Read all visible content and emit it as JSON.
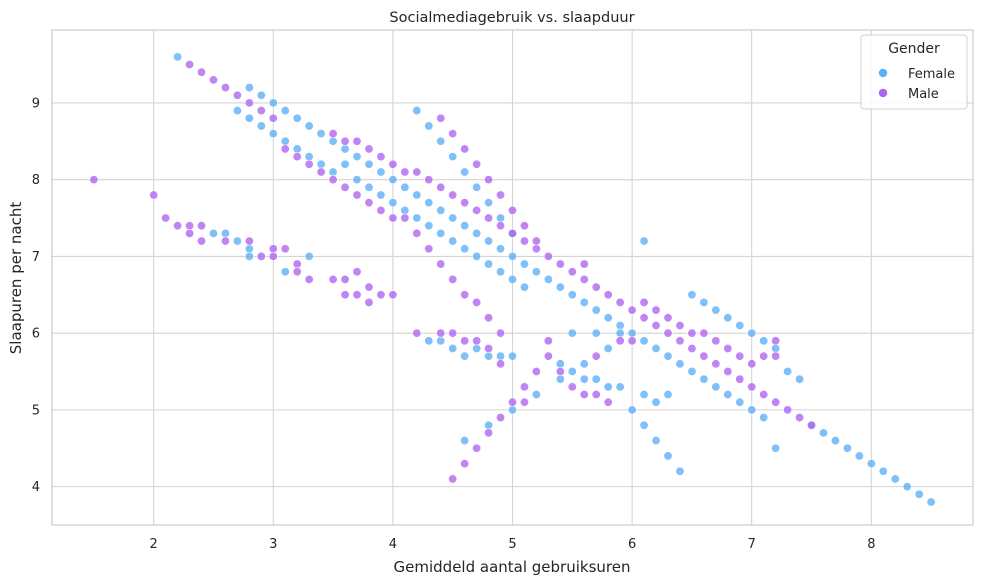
{
  "chart_data": {
    "type": "scatter",
    "title": "Socialmediagebruik vs. slaapduur",
    "xlabel": "Gemiddeld aantal gebruiksuren",
    "ylabel": "Slaapuren per nacht",
    "xlim": [
      1.15,
      8.85
    ],
    "ylim": [
      3.5,
      9.95
    ],
    "xticks": [
      2,
      3,
      4,
      5,
      6,
      7,
      8
    ],
    "yticks": [
      4,
      5,
      6,
      7,
      8,
      9
    ],
    "grid": true,
    "legend": {
      "title": "Gender",
      "placement": "top-right"
    },
    "series": [
      {
        "name": "Female",
        "color": "#5aaef5",
        "points": [
          [
            2.2,
            9.6
          ],
          [
            2.7,
            8.9
          ],
          [
            2.8,
            8.8
          ],
          [
            2.8,
            9.2
          ],
          [
            2.9,
            8.7
          ],
          [
            2.9,
            9.1
          ],
          [
            3.0,
            8.6
          ],
          [
            3.0,
            9.0
          ],
          [
            3.1,
            8.9
          ],
          [
            3.1,
            8.5
          ],
          [
            3.2,
            8.8
          ],
          [
            3.2,
            8.4
          ],
          [
            3.3,
            8.7
          ],
          [
            3.3,
            8.3
          ],
          [
            3.4,
            8.6
          ],
          [
            3.4,
            8.2
          ],
          [
            3.5,
            8.5
          ],
          [
            3.5,
            8.1
          ],
          [
            3.6,
            8.4
          ],
          [
            3.6,
            8.2
          ],
          [
            3.7,
            8.3
          ],
          [
            3.7,
            8.0
          ],
          [
            3.8,
            8.2
          ],
          [
            3.8,
            7.9
          ],
          [
            3.9,
            8.1
          ],
          [
            3.9,
            7.8
          ],
          [
            4.0,
            8.0
          ],
          [
            4.0,
            7.7
          ],
          [
            4.1,
            7.9
          ],
          [
            4.1,
            7.6
          ],
          [
            4.2,
            7.8
          ],
          [
            4.2,
            7.5
          ],
          [
            4.3,
            7.7
          ],
          [
            4.3,
            7.4
          ],
          [
            4.4,
            7.6
          ],
          [
            4.4,
            7.3
          ],
          [
            4.5,
            7.5
          ],
          [
            4.5,
            7.2
          ],
          [
            4.6,
            7.4
          ],
          [
            4.6,
            7.1
          ],
          [
            4.7,
            7.3
          ],
          [
            4.7,
            7.0
          ],
          [
            4.8,
            7.2
          ],
          [
            4.8,
            6.9
          ],
          [
            4.9,
            7.1
          ],
          [
            4.9,
            6.8
          ],
          [
            5.0,
            7.0
          ],
          [
            5.0,
            6.7
          ],
          [
            5.1,
            6.9
          ],
          [
            5.1,
            6.6
          ],
          [
            5.2,
            6.8
          ],
          [
            5.3,
            6.7
          ],
          [
            5.4,
            6.6
          ],
          [
            5.5,
            6.5
          ],
          [
            5.6,
            6.4
          ],
          [
            5.7,
            6.3
          ],
          [
            5.8,
            6.2
          ],
          [
            5.9,
            6.1
          ],
          [
            6.0,
            6.0
          ],
          [
            6.1,
            5.9
          ],
          [
            6.2,
            5.8
          ],
          [
            6.3,
            5.7
          ],
          [
            6.4,
            5.6
          ],
          [
            6.5,
            5.5
          ],
          [
            6.6,
            5.4
          ],
          [
            6.7,
            5.3
          ],
          [
            6.8,
            5.2
          ],
          [
            6.9,
            5.1
          ],
          [
            7.0,
            5.0
          ],
          [
            7.1,
            4.9
          ],
          [
            7.5,
            4.8
          ],
          [
            7.6,
            4.7
          ],
          [
            7.7,
            4.6
          ],
          [
            7.8,
            4.5
          ],
          [
            7.9,
            4.4
          ],
          [
            8.0,
            4.3
          ],
          [
            8.1,
            4.2
          ],
          [
            8.2,
            4.1
          ],
          [
            8.3,
            4.0
          ],
          [
            8.4,
            3.9
          ],
          [
            8.5,
            3.8
          ],
          [
            4.2,
            8.9
          ],
          [
            4.3,
            8.7
          ],
          [
            4.4,
            8.5
          ],
          [
            4.5,
            8.3
          ],
          [
            4.6,
            8.1
          ],
          [
            4.7,
            7.9
          ],
          [
            4.8,
            7.7
          ],
          [
            4.9,
            7.5
          ],
          [
            5.0,
            7.3
          ],
          [
            6.1,
            7.2
          ],
          [
            6.5,
            6.5
          ],
          [
            6.6,
            6.4
          ],
          [
            6.7,
            6.3
          ],
          [
            6.8,
            6.2
          ],
          [
            6.9,
            6.1
          ],
          [
            7.0,
            6.0
          ],
          [
            7.1,
            5.9
          ],
          [
            7.2,
            5.8
          ],
          [
            7.3,
            5.5
          ],
          [
            7.4,
            5.4
          ],
          [
            7.2,
            4.5
          ],
          [
            2.5,
            7.3
          ],
          [
            2.6,
            7.3
          ],
          [
            2.7,
            7.2
          ],
          [
            2.8,
            7.1
          ],
          [
            2.8,
            7.0
          ],
          [
            3.1,
            6.8
          ],
          [
            3.3,
            7.0
          ],
          [
            4.3,
            5.9
          ],
          [
            4.4,
            5.9
          ],
          [
            4.5,
            5.8
          ],
          [
            4.6,
            5.7
          ],
          [
            4.7,
            5.8
          ],
          [
            4.8,
            5.7
          ],
          [
            4.9,
            5.7
          ],
          [
            5.0,
            5.7
          ],
          [
            5.4,
            5.6
          ],
          [
            5.5,
            5.5
          ],
          [
            5.6,
            5.4
          ],
          [
            5.7,
            5.4
          ],
          [
            5.8,
            5.3
          ],
          [
            5.9,
            5.3
          ],
          [
            6.0,
            5.0
          ],
          [
            6.1,
            4.8
          ],
          [
            6.2,
            4.6
          ],
          [
            6.3,
            4.4
          ],
          [
            6.4,
            4.2
          ],
          [
            4.6,
            4.6
          ],
          [
            4.8,
            4.8
          ],
          [
            5.0,
            5.0
          ],
          [
            5.2,
            5.2
          ],
          [
            5.4,
            5.4
          ],
          [
            5.5,
            6.0
          ],
          [
            5.6,
            5.6
          ],
          [
            5.7,
            6.0
          ],
          [
            5.8,
            5.8
          ],
          [
            5.9,
            6.0
          ],
          [
            6.1,
            5.2
          ],
          [
            6.2,
            5.1
          ],
          [
            6.3,
            5.2
          ]
        ]
      },
      {
        "name": "Male",
        "color": "#b063f0",
        "points": [
          [
            1.5,
            8.0
          ],
          [
            2.0,
            7.8
          ],
          [
            2.1,
            7.5
          ],
          [
            2.2,
            7.4
          ],
          [
            2.3,
            7.4
          ],
          [
            2.3,
            7.3
          ],
          [
            2.4,
            7.4
          ],
          [
            2.4,
            7.2
          ],
          [
            2.6,
            7.2
          ],
          [
            2.8,
            7.2
          ],
          [
            2.9,
            7.0
          ],
          [
            3.0,
            7.1
          ],
          [
            3.0,
            7.0
          ],
          [
            3.1,
            7.1
          ],
          [
            3.2,
            6.9
          ],
          [
            3.2,
            6.8
          ],
          [
            3.3,
            6.7
          ],
          [
            3.5,
            6.7
          ],
          [
            3.6,
            6.7
          ],
          [
            3.6,
            6.5
          ],
          [
            3.7,
            6.8
          ],
          [
            3.7,
            6.5
          ],
          [
            3.8,
            6.6
          ],
          [
            3.8,
            6.4
          ],
          [
            3.9,
            6.5
          ],
          [
            4.0,
            6.5
          ],
          [
            2.3,
            9.5
          ],
          [
            2.4,
            9.4
          ],
          [
            2.5,
            9.3
          ],
          [
            2.6,
            9.2
          ],
          [
            2.7,
            9.1
          ],
          [
            2.8,
            9.0
          ],
          [
            2.9,
            8.9
          ],
          [
            3.0,
            8.8
          ],
          [
            3.1,
            8.4
          ],
          [
            3.2,
            8.3
          ],
          [
            3.3,
            8.2
          ],
          [
            3.4,
            8.1
          ],
          [
            3.5,
            8.0
          ],
          [
            3.6,
            7.9
          ],
          [
            3.7,
            7.8
          ],
          [
            3.8,
            7.7
          ],
          [
            3.9,
            7.6
          ],
          [
            4.0,
            7.5
          ],
          [
            4.1,
            7.5
          ],
          [
            4.2,
            7.3
          ],
          [
            4.3,
            7.1
          ],
          [
            4.4,
            6.9
          ],
          [
            4.5,
            6.7
          ],
          [
            4.6,
            6.5
          ],
          [
            4.7,
            6.4
          ],
          [
            4.8,
            6.2
          ],
          [
            4.9,
            6.0
          ],
          [
            3.5,
            8.6
          ],
          [
            3.6,
            8.5
          ],
          [
            3.7,
            8.5
          ],
          [
            3.8,
            8.4
          ],
          [
            3.9,
            8.3
          ],
          [
            4.0,
            8.2
          ],
          [
            4.1,
            8.1
          ],
          [
            4.2,
            8.1
          ],
          [
            4.3,
            8.0
          ],
          [
            4.4,
            7.9
          ],
          [
            4.5,
            7.8
          ],
          [
            4.6,
            7.7
          ],
          [
            4.7,
            7.6
          ],
          [
            4.8,
            7.5
          ],
          [
            4.9,
            7.4
          ],
          [
            5.0,
            7.3
          ],
          [
            5.1,
            7.2
          ],
          [
            5.2,
            7.1
          ],
          [
            5.3,
            7.0
          ],
          [
            5.4,
            6.9
          ],
          [
            5.5,
            6.8
          ],
          [
            5.6,
            6.7
          ],
          [
            5.7,
            6.6
          ],
          [
            5.8,
            6.5
          ],
          [
            5.9,
            6.4
          ],
          [
            6.0,
            6.3
          ],
          [
            6.1,
            6.2
          ],
          [
            6.2,
            6.1
          ],
          [
            6.3,
            6.0
          ],
          [
            6.4,
            5.9
          ],
          [
            6.5,
            5.8
          ],
          [
            6.6,
            5.7
          ],
          [
            6.7,
            5.6
          ],
          [
            6.8,
            5.5
          ],
          [
            6.9,
            5.4
          ],
          [
            7.0,
            5.3
          ],
          [
            7.1,
            5.2
          ],
          [
            7.2,
            5.1
          ],
          [
            7.3,
            5.0
          ],
          [
            7.4,
            4.9
          ],
          [
            7.5,
            4.8
          ],
          [
            4.4,
            8.8
          ],
          [
            4.5,
            8.6
          ],
          [
            4.6,
            8.4
          ],
          [
            4.7,
            8.2
          ],
          [
            4.8,
            8.0
          ],
          [
            4.9,
            7.8
          ],
          [
            5.0,
            7.6
          ],
          [
            5.1,
            7.4
          ],
          [
            5.2,
            7.2
          ],
          [
            5.6,
            6.9
          ],
          [
            6.1,
            6.4
          ],
          [
            6.2,
            6.3
          ],
          [
            6.3,
            6.2
          ],
          [
            6.4,
            6.1
          ],
          [
            6.5,
            6.0
          ],
          [
            6.6,
            6.0
          ],
          [
            6.7,
            5.9
          ],
          [
            6.8,
            5.8
          ],
          [
            6.9,
            5.7
          ],
          [
            7.0,
            5.6
          ],
          [
            7.1,
            5.7
          ],
          [
            7.2,
            5.9
          ],
          [
            7.2,
            5.7
          ],
          [
            4.2,
            6.0
          ],
          [
            4.4,
            6.0
          ],
          [
            4.5,
            6.0
          ],
          [
            4.6,
            5.9
          ],
          [
            4.7,
            5.9
          ],
          [
            4.8,
            5.8
          ],
          [
            4.9,
            5.6
          ],
          [
            5.0,
            5.1
          ],
          [
            5.1,
            5.3
          ],
          [
            5.2,
            5.5
          ],
          [
            5.3,
            5.7
          ],
          [
            5.4,
            5.5
          ],
          [
            5.5,
            5.3
          ],
          [
            5.6,
            5.2
          ],
          [
            5.7,
            5.2
          ],
          [
            5.8,
            5.1
          ],
          [
            6.0,
            5.9
          ],
          [
            4.5,
            4.1
          ],
          [
            4.6,
            4.3
          ],
          [
            4.7,
            4.5
          ],
          [
            4.8,
            4.7
          ],
          [
            4.9,
            4.9
          ],
          [
            5.1,
            5.1
          ],
          [
            5.3,
            5.9
          ],
          [
            5.7,
            5.7
          ],
          [
            5.9,
            5.9
          ]
        ]
      }
    ]
  }
}
